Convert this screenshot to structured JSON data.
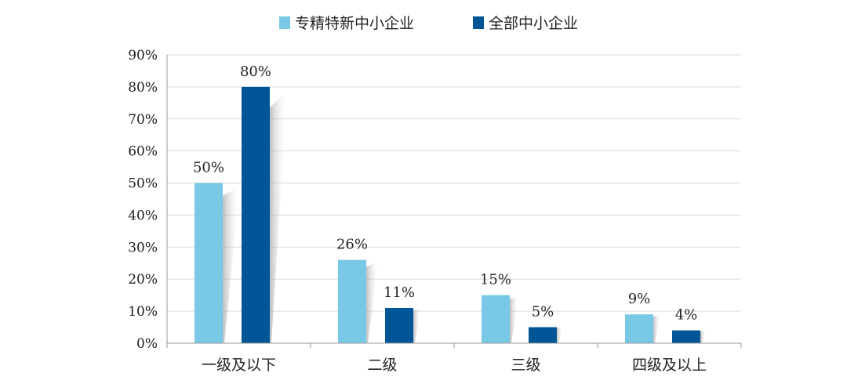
{
  "chart_data": {
    "type": "bar",
    "title": "",
    "xlabel": "",
    "ylabel": "",
    "categories": [
      "一级及以下",
      "二级",
      "三级",
      "四级及以上"
    ],
    "series": [
      {
        "name": "专精特新中小企业",
        "values": [
          50,
          26,
          15,
          9
        ],
        "labels": [
          "50%",
          "26%",
          "15%",
          "9%"
        ],
        "color": "#78c8e6"
      },
      {
        "name": "全部中小企业",
        "values": [
          80,
          11,
          5,
          4
        ],
        "labels": [
          "80%",
          "11%",
          "5%",
          "4%"
        ],
        "color": "#005596"
      }
    ],
    "yticks": [
      0,
      10,
      20,
      30,
      40,
      50,
      60,
      70,
      80,
      90
    ],
    "ytick_labels": [
      "0%",
      "10%",
      "20%",
      "30%",
      "40%",
      "50%",
      "60%",
      "70%",
      "80%",
      "90%"
    ],
    "ylim": [
      0,
      90
    ],
    "grid": true,
    "legend_position": "top-center"
  }
}
